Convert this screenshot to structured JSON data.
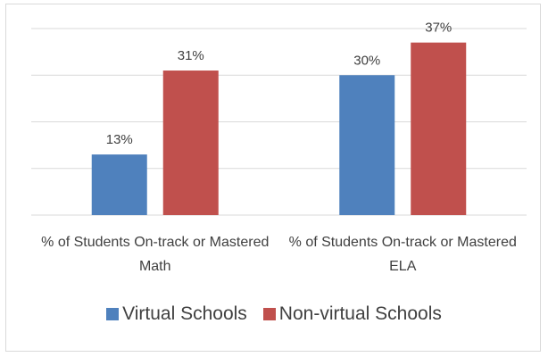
{
  "chart_data": {
    "type": "bar",
    "categories": [
      "% of Students On-track or Mastered Math",
      "% of Students On-track or Mastered ELA"
    ],
    "series": [
      {
        "name": "Virtual Schools",
        "color": "#4f81bd",
        "values": [
          13,
          30
        ],
        "value_labels": [
          "13%",
          "30%"
        ]
      },
      {
        "name": "Non-virtual Schools",
        "color": "#c0504d",
        "values": [
          31,
          37
        ],
        "value_labels": [
          "31%",
          "37%"
        ]
      }
    ],
    "ylim": [
      0,
      40
    ],
    "yticks": [
      0,
      10,
      20,
      30,
      40
    ],
    "grid": true,
    "legend": "bottom"
  }
}
